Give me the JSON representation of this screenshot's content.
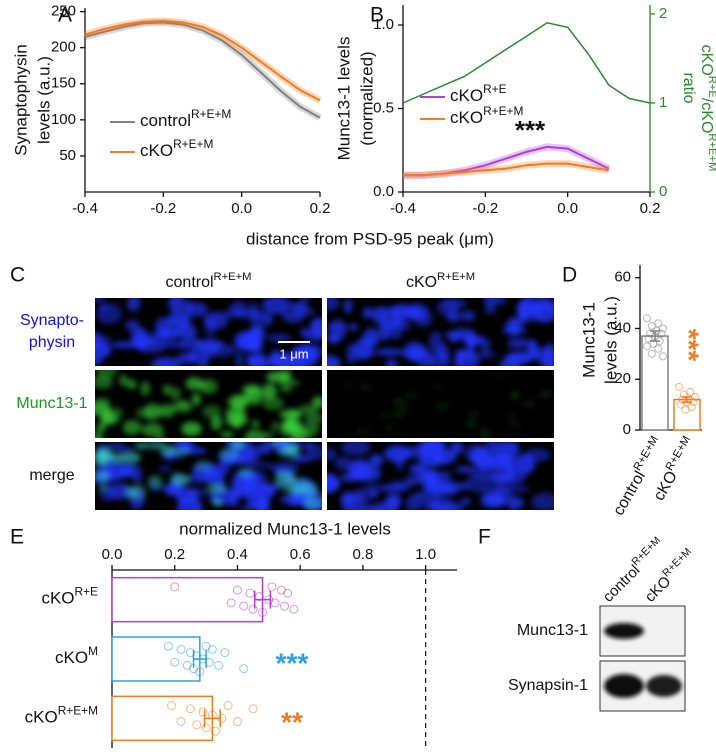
{
  "chart_data": [
    {
      "panel_label": "A",
      "type": "line",
      "ylabel": [
        "Synaptophysin",
        "levels (a.u.)"
      ],
      "x": [
        -0.4,
        -0.35,
        -0.3,
        -0.25,
        -0.2,
        -0.15,
        -0.1,
        -0.05,
        0,
        0.05,
        0.1,
        0.15,
        0.2
      ],
      "xlim": [
        -0.4,
        0.2
      ],
      "xticks": [
        -0.4,
        -0.2,
        {
          "value": 0,
          "label": "0.0"
        },
        0.2
      ],
      "ylim": [
        0,
        255
      ],
      "yticks": [
        50,
        100,
        150,
        200,
        250
      ],
      "series": [
        {
          "name": [
            {
              "text": "control"
            },
            {
              "sup": "R+E+M"
            }
          ],
          "color": "#808080",
          "values": [
            215,
            222,
            229,
            234,
            235,
            232,
            224,
            210,
            190,
            165,
            140,
            118,
            103
          ]
        },
        {
          "name": [
            {
              "text": "cKO"
            },
            {
              "sup": "R+E+M"
            }
          ],
          "color": "#f47b20",
          "values": [
            218,
            226,
            232,
            236,
            237,
            235,
            229,
            217,
            200,
            180,
            160,
            141,
            127
          ]
        }
      ],
      "legend": "lower left"
    },
    {
      "panel_label": "B",
      "type": "line",
      "ylabel": [
        "Munc13-1 levels",
        "(normalized)"
      ],
      "y2label": [
        [
          {
            "text": "ratio"
          }
        ],
        [
          {
            "text": "cKO"
          },
          {
            "sup": "R+E"
          },
          {
            "text": "/cKO"
          },
          {
            "sup": "R+E+M"
          }
        ]
      ],
      "y2color": "#2a8a2a",
      "x": [
        -0.4,
        -0.35,
        -0.3,
        -0.25,
        -0.2,
        -0.15,
        -0.1,
        -0.05,
        0,
        0.05,
        0.1,
        0.15,
        0.2
      ],
      "xlim": [
        -0.4,
        0.2
      ],
      "xticks": [
        -0.4,
        -0.2,
        {
          "value": 0,
          "label": "0.0"
        },
        0.2
      ],
      "ylim": [
        0,
        1.12
      ],
      "yticks": [
        {
          "value": 0,
          "label": "0.0"
        },
        0.5,
        {
          "value": 1,
          "label": "1.0"
        }
      ],
      "y2lim": [
        0,
        2.1
      ],
      "y2ticks": [
        0,
        1,
        2
      ],
      "series": [
        {
          "name": [
            {
              "text": "cKO"
            },
            {
              "sup": "R+E"
            }
          ],
          "color": "#b03fd6",
          "values": [
            0.1,
            0.1,
            0.11,
            0.13,
            0.16,
            0.2,
            0.24,
            0.27,
            0.26,
            0.2,
            0.14,
            null,
            null
          ]
        },
        {
          "name": [
            {
              "text": "cKO"
            },
            {
              "sup": "R+E+M"
            }
          ],
          "color": "#f47b20",
          "values": [
            0.1,
            0.1,
            0.11,
            0.12,
            0.13,
            0.14,
            0.16,
            0.17,
            0.17,
            0.15,
            0.13,
            null,
            null
          ]
        },
        {
          "axis": "y2",
          "color": "#2a8a2a",
          "values": [
            1.0,
            1.1,
            1.2,
            1.3,
            1.45,
            1.6,
            1.75,
            1.9,
            1.85,
            1.55,
            1.2,
            1.05,
            1.0
          ]
        }
      ],
      "legend": "center left",
      "annotation": "***"
    },
    {
      "panel_label": "D",
      "type": "bar",
      "ylabel": [
        "Munc13-1",
        "levels (a.u.)"
      ],
      "categories": [
        [
          {
            "text": "control"
          },
          {
            "sup": "R+E+M"
          }
        ],
        [
          {
            "text": "cKO"
          },
          {
            "sup": "R+E+M"
          }
        ]
      ],
      "values": [
        37,
        12
      ],
      "errors": [
        2,
        1
      ],
      "colors": [
        "#808080",
        "#f47b20"
      ],
      "points": [
        [
          44,
          42,
          41,
          40,
          39,
          38,
          38,
          37,
          36,
          35,
          34,
          33,
          32,
          30,
          29
        ],
        [
          17,
          15,
          14,
          13,
          12,
          12,
          11,
          11,
          10,
          9,
          8
        ]
      ],
      "ylim": [
        0,
        65
      ],
      "yticks": [
        0,
        20,
        40,
        60
      ],
      "annotations": [
        null,
        "***"
      ]
    },
    {
      "panel_label": "E",
      "type": "barh",
      "title": "normalized Munc13-1 levels",
      "categories": [
        [
          {
            "text": "cKO"
          },
          {
            "sup": "R+E"
          }
        ],
        [
          {
            "text": "cKO"
          },
          {
            "sup": "M"
          }
        ],
        [
          {
            "text": "cKO"
          },
          {
            "sup": "R+E+M"
          }
        ]
      ],
      "values": [
        0.48,
        0.28,
        0.32
      ],
      "errors": [
        0.025,
        0.02,
        0.025
      ],
      "colors": [
        "#b03fd6",
        "#2ea1e8",
        "#f47b20"
      ],
      "points": [
        [
          0.2,
          0.38,
          0.4,
          0.42,
          0.44,
          0.45,
          0.47,
          0.48,
          0.5,
          0.51,
          0.52,
          0.54,
          0.55,
          0.56,
          0.58
        ],
        [
          0.18,
          0.2,
          0.22,
          0.24,
          0.25,
          0.26,
          0.27,
          0.28,
          0.29,
          0.3,
          0.31,
          0.32,
          0.34,
          0.36,
          0.42
        ],
        [
          0.19,
          0.22,
          0.25,
          0.27,
          0.29,
          0.3,
          0.32,
          0.33,
          0.35,
          0.37,
          0.4,
          0.45
        ]
      ],
      "xlim": [
        0,
        1.1
      ],
      "xticks": [
        {
          "value": 0,
          "label": "0.0"
        },
        0.2,
        0.4,
        0.6,
        0.8,
        {
          "value": 1,
          "label": "1.0"
        }
      ],
      "reference_line": 1,
      "annotations": [
        null,
        "***",
        "**"
      ]
    }
  ],
  "xlabel_ab": "distance from PSD-95 peak (μm)",
  "panel_c": {
    "label": "C",
    "columns": [
      [
        {
          "text": "control"
        },
        {
          "sup": "R+E+M"
        }
      ],
      [
        {
          "text": "cKO"
        },
        {
          "sup": "R+E+M"
        }
      ]
    ],
    "rows": [
      {
        "lines": [
          "Synapto-",
          "physin"
        ],
        "color": "#1010e0"
      },
      {
        "lines": [
          "Munc13-1"
        ],
        "color": "#1a9a1a"
      },
      {
        "lines": [
          "merge"
        ],
        "color": "#111111"
      }
    ],
    "scale_bar": "1 μm"
  },
  "panel_f": {
    "label": "F",
    "columns": [
      [
        {
          "text": "control"
        },
        {
          "sup": "R+E+M"
        }
      ],
      [
        {
          "text": "cKO"
        },
        {
          "sup": "R+E+M"
        }
      ]
    ],
    "rows": [
      "Munc13-1",
      "Synapsin-1"
    ]
  }
}
